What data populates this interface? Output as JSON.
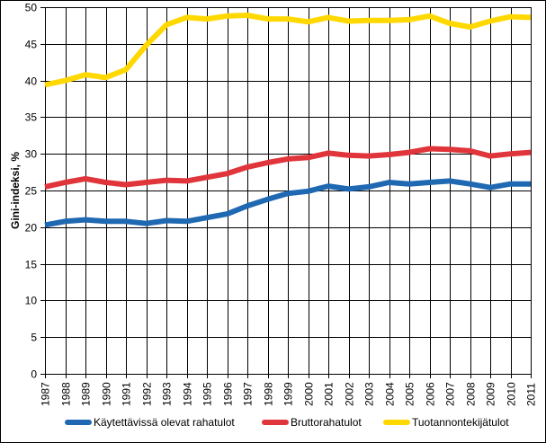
{
  "chart_data": {
    "type": "line",
    "title": "",
    "xlabel": "",
    "ylabel": "Gini-indeksi, %",
    "ylim": [
      0,
      50
    ],
    "yticks": [
      0,
      5,
      10,
      15,
      20,
      25,
      30,
      35,
      40,
      45,
      50
    ],
    "grid": true,
    "legend_position": "bottom",
    "x": [
      "1987",
      "1988",
      "1989",
      "1990",
      "1991",
      "1992",
      "1993",
      "1994",
      "1995",
      "1996",
      "1997",
      "1998",
      "1999",
      "2000",
      "2001",
      "2002",
      "2003",
      "2004",
      "2005",
      "2006",
      "2007",
      "2008",
      "2009",
      "2010",
      "2011"
    ],
    "series": [
      {
        "name": "Käytettävissä olevat rahatulot",
        "color": "#1f68b2",
        "values": [
          20.3,
          20.8,
          21.0,
          20.8,
          20.8,
          20.5,
          20.9,
          20.8,
          21.3,
          21.8,
          22.9,
          23.8,
          24.6,
          24.9,
          25.6,
          25.2,
          25.5,
          26.1,
          25.9,
          26.1,
          26.3,
          25.9,
          25.4,
          25.9,
          25.9
        ]
      },
      {
        "name": "Bruttorahatulot",
        "color": "#e0353b",
        "values": [
          25.5,
          26.1,
          26.6,
          26.1,
          25.8,
          26.1,
          26.4,
          26.3,
          26.8,
          27.3,
          28.2,
          28.8,
          29.3,
          29.5,
          30.1,
          29.8,
          29.7,
          29.9,
          30.2,
          30.7,
          30.6,
          30.4,
          29.7,
          30.0,
          30.2
        ]
      },
      {
        "name": "Tuotannontekijätulot",
        "color": "#ffd800",
        "values": [
          39.4,
          40.0,
          40.8,
          40.4,
          41.5,
          44.8,
          47.6,
          48.6,
          48.4,
          48.8,
          48.9,
          48.4,
          48.4,
          48.0,
          48.6,
          48.1,
          48.2,
          48.2,
          48.3,
          48.8,
          47.8,
          47.3,
          48.1,
          48.7,
          48.6
        ]
      }
    ]
  }
}
